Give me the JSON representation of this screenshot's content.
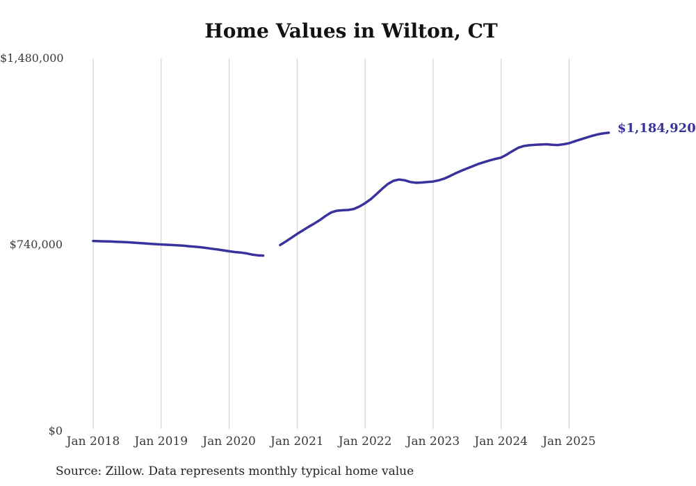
{
  "chart": {
    "title": "Home Values in Wilton, CT",
    "source_note": "Source: Zillow. Data represents monthly typical home value",
    "end_label": "$1,184,920",
    "colors": {
      "line": "#39319c",
      "grid": "#cccccc",
      "axis_text": "#3a3a3a",
      "title_text": "#121212",
      "end_label_text": "#39319c",
      "source_text": "#222222",
      "background": "#ffffff"
    }
  },
  "chart_data": {
    "type": "line",
    "title": "Home Values in Wilton, CT",
    "xlabel": "",
    "ylabel": "",
    "ylim": [
      0,
      1480000
    ],
    "grid": "vertical-only",
    "legend_position": "none",
    "x_tick_labels": [
      "Jan 2018",
      "Jan 2019",
      "Jan 2020",
      "Jan 2021",
      "Jan 2022",
      "Jan 2023",
      "Jan 2024",
      "Jan 2025"
    ],
    "y_ticks": [
      {
        "label": "$1,480,000",
        "value": 1480000
      },
      {
        "label": "$740,000",
        "value": 740000
      },
      {
        "label": "$0",
        "value": 0
      }
    ],
    "final_value_label": "$1,184,920",
    "note": "gap in data Aug-Sep 2020 shown as break in line",
    "series": [
      {
        "name": "Monthly typical home value",
        "color": "#39319c",
        "start_month": "2018-01",
        "frequency": "monthly",
        "values": [
          755000,
          754000,
          753500,
          753000,
          752000,
          751000,
          750000,
          748500,
          747000,
          745500,
          744000,
          742500,
          741000,
          740000,
          739000,
          737500,
          736000,
          734000,
          732000,
          730000,
          727000,
          724000,
          721000,
          717500,
          714000,
          711000,
          709000,
          706000,
          701000,
          698000,
          697000,
          null,
          null,
          739000,
          753000,
          768000,
          783000,
          797000,
          811000,
          824000,
          838000,
          854000,
          868000,
          875000,
          877000,
          878000,
          882000,
          892000,
          905000,
          921000,
          941000,
          962000,
          981000,
          994000,
          999000,
          996000,
          989000,
          986000,
          987000,
          989000,
          991000,
          996000,
          1003000,
          1013000,
          1024000,
          1034000,
          1043000,
          1052000,
          1061000,
          1068000,
          1075000,
          1081000,
          1086000,
          1098000,
          1112000,
          1125000,
          1132000,
          1135000,
          1137000,
          1138000,
          1139000,
          1137000,
          1136000,
          1139000,
          1143000,
          1151000,
          1158000,
          1165000,
          1172000,
          1178000,
          1182000,
          1184920
        ]
      }
    ]
  }
}
